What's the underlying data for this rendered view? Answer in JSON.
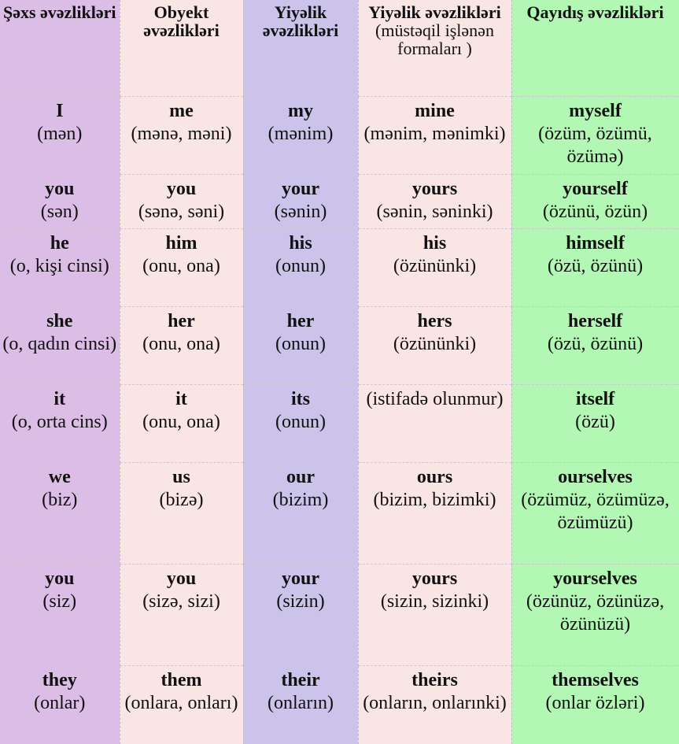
{
  "headers": [
    {
      "title": "Şəxs əvəzlikləri",
      "sub": ""
    },
    {
      "title": "Obyekt əvəzlikləri",
      "sub": ""
    },
    {
      "title": "Yiyəlik əvəzlikləri",
      "sub": ""
    },
    {
      "title": "Yiyəlik əvəzlikləri",
      "sub": "(müstəqil işlənən formaları )"
    },
    {
      "title": "Qayıdış əvəzlikləri",
      "sub": ""
    }
  ],
  "rows": [
    [
      {
        "word": "I",
        "tr": "(mən)"
      },
      {
        "word": "me",
        "tr": "(mənə, məni)"
      },
      {
        "word": "my",
        "tr": "(mənim)"
      },
      {
        "word": "mine",
        "tr": "(mənim, mənimki)"
      },
      {
        "word": "myself",
        "tr": "(özüm, özümü, özümə)"
      }
    ],
    [
      {
        "word": "you",
        "tr": "(sən)"
      },
      {
        "word": "you",
        "tr": "(sənə, səni)"
      },
      {
        "word": "your",
        "tr": "(sənin)"
      },
      {
        "word": "yours",
        "tr": "(sənin, səninki)"
      },
      {
        "word": "yourself",
        "tr": "(özünü, özün)"
      }
    ],
    [
      {
        "word": "he",
        "tr": "(o, kişi cinsi)"
      },
      {
        "word": "him",
        "tr": "(onu, ona)"
      },
      {
        "word": "his",
        "tr": "(onun)"
      },
      {
        "word": "his",
        "tr": "(özününki)"
      },
      {
        "word": "himself",
        "tr": "(özü, özünü)"
      }
    ],
    [
      {
        "word": "she",
        "tr": "(o, qadın cinsi)"
      },
      {
        "word": "her",
        "tr": "(onu, ona)"
      },
      {
        "word": "her",
        "tr": "(onun)"
      },
      {
        "word": "hers",
        "tr": "(özününki)"
      },
      {
        "word": "herself",
        "tr": "(özü, özünü)"
      }
    ],
    [
      {
        "word": "it",
        "tr": "(o, orta cins)"
      },
      {
        "word": "it",
        "tr": "(onu, ona)"
      },
      {
        "word": "its",
        "tr": "(onun)"
      },
      {
        "word": "",
        "tr": "(istifadə olunmur)"
      },
      {
        "word": "itself",
        "tr": "(özü)"
      }
    ],
    [
      {
        "word": "we",
        "tr": "(biz)"
      },
      {
        "word": "us",
        "tr": "(bizə)"
      },
      {
        "word": "our",
        "tr": "(bizim)"
      },
      {
        "word": "ours",
        "tr": "(bizim, bizimki)"
      },
      {
        "word": "ourselves",
        "tr": "(özümüz, özümüzə, özümüzü)"
      }
    ],
    [
      {
        "word": "you",
        "tr": "(siz)"
      },
      {
        "word": "you",
        "tr": "(sizə, sizi)"
      },
      {
        "word": "your",
        "tr": "(sizin)"
      },
      {
        "word": "yours",
        "tr": "(sizin, sizinki)"
      },
      {
        "word": "yourselves",
        "tr": "(özünüz, özünüzə, özünüzü)"
      }
    ],
    [
      {
        "word": "they",
        "tr": "(onlar)"
      },
      {
        "word": "them",
        "tr": "(onlara, onları)"
      },
      {
        "word": "their",
        "tr": "(onların)"
      },
      {
        "word": "theirs",
        "tr": "(onların, onlarınki)"
      },
      {
        "word": "themselves",
        "tr": "(onlar özləri)"
      }
    ]
  ],
  "colors": {
    "col_1": "#dcbde6",
    "col_2": "#f9e6e4",
    "col_3": "#cbc3e9",
    "col_4": "#f9e6e4",
    "col_5": "#b2f7b4"
  }
}
